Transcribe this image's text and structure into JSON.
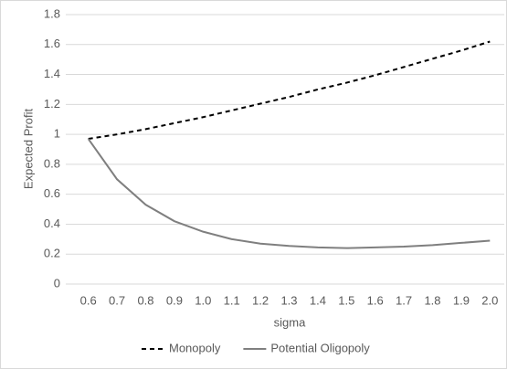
{
  "chart_data": {
    "type": "line",
    "x_label": "sigma",
    "y_label": "Expected Profit",
    "categories": [
      "0.6",
      "0.7",
      "0.8",
      "0.9",
      "1.0",
      "1.1",
      "1.2",
      "1.3",
      "1.4",
      "1.5",
      "1.6",
      "1.7",
      "1.8",
      "1.9",
      "2.0"
    ],
    "series": [
      {
        "name": "Monopoly",
        "color": "#000000",
        "line_style": "dashed",
        "values": [
          0.97,
          1.0,
          1.035,
          1.075,
          1.115,
          1.16,
          1.205,
          1.25,
          1.3,
          1.345,
          1.395,
          1.45,
          1.505,
          1.56,
          1.62
        ]
      },
      {
        "name": "Potential Oligopoly",
        "color": "#7f7f7f",
        "line_style": "solid",
        "values": [
          0.97,
          0.7,
          0.53,
          0.42,
          0.35,
          0.3,
          0.27,
          0.255,
          0.245,
          0.24,
          0.245,
          0.25,
          0.26,
          0.275,
          0.29
        ]
      }
    ],
    "ylim": [
      0,
      1.8
    ],
    "yticks": [
      0,
      0.2,
      0.4,
      0.6,
      0.8,
      1,
      1.2,
      1.4,
      1.6,
      1.8
    ],
    "grid": true,
    "legend": "bottom"
  }
}
